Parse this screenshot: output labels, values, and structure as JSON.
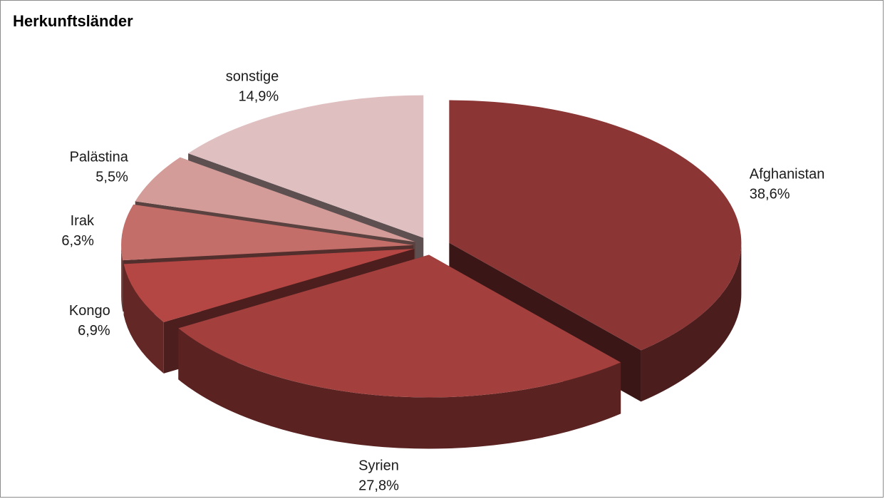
{
  "chart_data": {
    "type": "pie",
    "title": "Herkunftsländer",
    "three_d": true,
    "exploded": true,
    "slices": [
      {
        "label": "Afghanistan",
        "value": 38.6,
        "value_label": "38,6%",
        "color": "#8b3535"
      },
      {
        "label": "Syrien",
        "value": 27.8,
        "value_label": "27,8%",
        "color": "#a3403e"
      },
      {
        "label": "Kongo",
        "value": 6.9,
        "value_label": "6,9%",
        "color": "#b44744"
      },
      {
        "label": "Irak",
        "value": 6.3,
        "value_label": "6,3%",
        "color": "#c46e6a"
      },
      {
        "label": "Palästina",
        "value": 5.5,
        "value_label": "5,5%",
        "color": "#d49c98"
      },
      {
        "label": "sonstige",
        "value": 14.9,
        "value_label": "14,9%",
        "color": "#e0bfc1"
      }
    ]
  }
}
